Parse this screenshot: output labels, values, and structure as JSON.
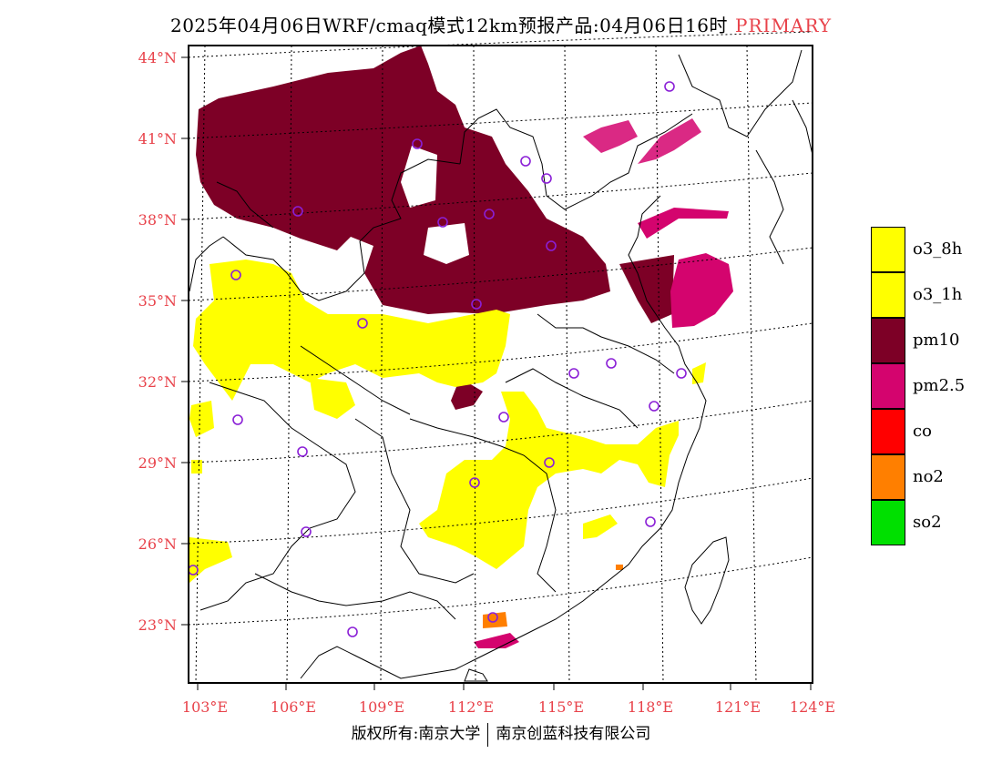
{
  "title": {
    "main": "2025年04月06日WRF/cmaq模式12km预报产品:04月06日16时",
    "tag": "PRIMARY"
  },
  "axes": {
    "lat_labels": [
      "44°N",
      "41°N",
      "38°N",
      "35°N",
      "32°N",
      "29°N",
      "26°N",
      "23°N"
    ],
    "lon_labels": [
      "103°E",
      "106°E",
      "109°E",
      "112°E",
      "115°E",
      "118°E",
      "121°E",
      "124°E"
    ],
    "label_color": "#e8424a"
  },
  "legend": [
    {
      "label": "o3_8h",
      "color": "#ffff00"
    },
    {
      "label": "o3_1h",
      "color": "#ffff00"
    },
    {
      "label": "pm10",
      "color": "#7d0026"
    },
    {
      "label": "pm2.5",
      "color": "#d4046e"
    },
    {
      "label": "co",
      "color": "#ff0000"
    },
    {
      "label": "no2",
      "color": "#ff7f00"
    },
    {
      "label": "so2",
      "color": "#00e000"
    }
  ],
  "footer": {
    "left": "版权所有:南京大学",
    "right": "南京创蓝科技有限公司"
  },
  "colors": {
    "o3": "#ffff00",
    "pm10": "#7d0026",
    "pm25": "#d4046e",
    "no2": "#ff7f00",
    "station_marker": "#8a1fd6"
  }
}
